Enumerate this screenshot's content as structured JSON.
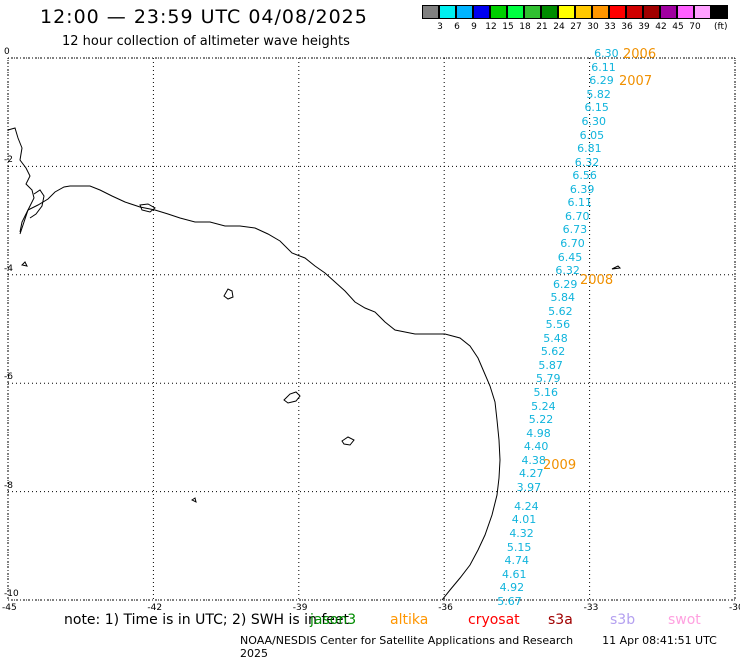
{
  "header": {
    "title": "12:00 — 23:59 UTC 04/08/2025",
    "subtitle": "12 hour collection of altimeter wave heights"
  },
  "scale": {
    "unit": "(ft)",
    "bins": [
      {
        "label": "",
        "color": "#808080"
      },
      {
        "label": "3",
        "color": "#00f0f0"
      },
      {
        "label": "6",
        "color": "#00b4ff"
      },
      {
        "label": "9",
        "color": "#0000f0"
      },
      {
        "label": "12",
        "color": "#00d000"
      },
      {
        "label": "15",
        "color": "#00ff40"
      },
      {
        "label": "18",
        "color": "#30c030"
      },
      {
        "label": "21",
        "color": "#008c00"
      },
      {
        "label": "24",
        "color": "#ffff00"
      },
      {
        "label": "27",
        "color": "#ffc800"
      },
      {
        "label": "30",
        "color": "#ff9600"
      },
      {
        "label": "33",
        "color": "#ff0000"
      },
      {
        "label": "36",
        "color": "#d00000"
      },
      {
        "label": "39",
        "color": "#a00000"
      },
      {
        "label": "42",
        "color": "#a000a0"
      },
      {
        "label": "45",
        "color": "#ff60ff"
      },
      {
        "label": "70",
        "color": "#ffa0ff"
      },
      {
        "label": "",
        "color": "#000000"
      }
    ]
  },
  "axes": {
    "y_labels": [
      "0",
      "-2",
      "-4",
      "-6",
      "-8",
      "-10"
    ],
    "x_labels": [
      "-45",
      "-42",
      "-39",
      "-36",
      "-33",
      "-30"
    ],
    "lon_range": [
      -45,
      -30
    ],
    "lat_range": [
      -10,
      0
    ]
  },
  "track": {
    "color": "#10b4dc",
    "points": [
      {
        "lon": -32.7,
        "lat": 0.06,
        "swh": "6.30"
      },
      {
        "lon": -32.76,
        "lat": -0.2,
        "swh": "6.11"
      },
      {
        "lon": -32.8,
        "lat": -0.45,
        "swh": "6.29"
      },
      {
        "lon": -32.86,
        "lat": -0.7,
        "swh": "5.82"
      },
      {
        "lon": -32.9,
        "lat": -0.95,
        "swh": "6.15"
      },
      {
        "lon": -32.96,
        "lat": -1.2,
        "swh": "6.30"
      },
      {
        "lon": -33.0,
        "lat": -1.45,
        "swh": "6.05"
      },
      {
        "lon": -33.05,
        "lat": -1.7,
        "swh": "6.81"
      },
      {
        "lon": -33.1,
        "lat": -1.95,
        "swh": "6.32"
      },
      {
        "lon": -33.15,
        "lat": -2.2,
        "swh": "6.56"
      },
      {
        "lon": -33.2,
        "lat": -2.45,
        "swh": "6.39"
      },
      {
        "lon": -33.25,
        "lat": -2.7,
        "swh": "6.11"
      },
      {
        "lon": -33.3,
        "lat": -2.95,
        "swh": "6.70"
      },
      {
        "lon": -33.35,
        "lat": -3.2,
        "swh": "6.73"
      },
      {
        "lon": -33.4,
        "lat": -3.45,
        "swh": "6.70"
      },
      {
        "lon": -33.45,
        "lat": -3.7,
        "swh": "6.45"
      },
      {
        "lon": -33.5,
        "lat": -3.95,
        "swh": "6.32"
      },
      {
        "lon": -33.55,
        "lat": -4.2,
        "swh": "6.29"
      },
      {
        "lon": -33.6,
        "lat": -4.45,
        "swh": "5.84"
      },
      {
        "lon": -33.65,
        "lat": -4.7,
        "swh": "5.62"
      },
      {
        "lon": -33.7,
        "lat": -4.95,
        "swh": "5.56"
      },
      {
        "lon": -33.75,
        "lat": -5.2,
        "swh": "5.48"
      },
      {
        "lon": -33.8,
        "lat": -5.45,
        "swh": "5.62"
      },
      {
        "lon": -33.85,
        "lat": -5.7,
        "swh": "5.87"
      },
      {
        "lon": -33.9,
        "lat": -5.95,
        "swh": "5.79"
      },
      {
        "lon": -33.95,
        "lat": -6.2,
        "swh": "5.16"
      },
      {
        "lon": -34.0,
        "lat": -6.45,
        "swh": "5.24"
      },
      {
        "lon": -34.05,
        "lat": -6.7,
        "swh": "5.22"
      },
      {
        "lon": -34.1,
        "lat": -6.95,
        "swh": "4.98"
      },
      {
        "lon": -34.15,
        "lat": -7.2,
        "swh": "4.40"
      },
      {
        "lon": -34.2,
        "lat": -7.45,
        "swh": "4.38"
      },
      {
        "lon": -34.25,
        "lat": -7.7,
        "swh": "4.27"
      },
      {
        "lon": -34.3,
        "lat": -7.95,
        "swh": "3.97"
      },
      {
        "lon": -34.35,
        "lat": -8.3,
        "swh": "4.24"
      },
      {
        "lon": -34.4,
        "lat": -8.55,
        "swh": "4.01"
      },
      {
        "lon": -34.45,
        "lat": -8.8,
        "swh": "4.32"
      },
      {
        "lon": -34.5,
        "lat": -9.05,
        "swh": "5.15"
      },
      {
        "lon": -34.55,
        "lat": -9.3,
        "swh": "4.74"
      },
      {
        "lon": -34.6,
        "lat": -9.55,
        "swh": "4.61"
      },
      {
        "lon": -34.65,
        "lat": -9.8,
        "swh": "4.92"
      },
      {
        "lon": -34.7,
        "lat": -10.05,
        "swh": "5.67"
      }
    ],
    "stamps": [
      {
        "text": "2006",
        "color": "#f09000"
      },
      {
        "text": "2007",
        "color": "#f09000"
      },
      {
        "text": "2008",
        "color": "#f09000"
      },
      {
        "text": "2009",
        "color": "#f09000"
      }
    ]
  },
  "footer": {
    "note": "note: 1) Time is in UTC; 2) SWH is in feet",
    "legend": [
      {
        "name": "jason3",
        "color": "#008c00"
      },
      {
        "name": "altika",
        "color": "#ff9600"
      },
      {
        "name": "cryosat",
        "color": "#ff0000"
      },
      {
        "name": "s3a",
        "color": "#a00000"
      },
      {
        "name": "s3b",
        "color": "#b4a0f0"
      },
      {
        "name": "swot",
        "color": "#ffa0e0"
      }
    ],
    "credit": "NOAA/NESDIS Center for Satellite Applications and Research",
    "timestamp": "11 Apr 08:41:51 UTC 2025"
  }
}
